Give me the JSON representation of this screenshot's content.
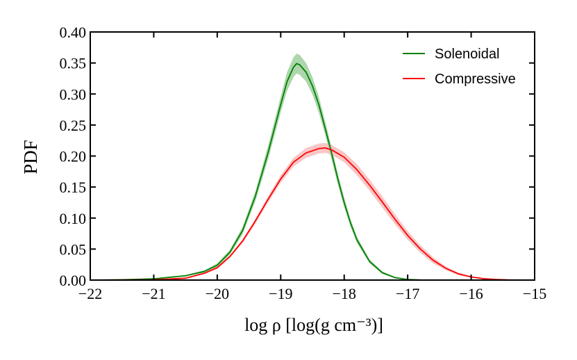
{
  "chart_data": {
    "type": "line",
    "xlabel": "log ρ   [log(g cm⁻³)]",
    "ylabel": "PDF",
    "xlim": [
      -22,
      -15
    ],
    "ylim": [
      0,
      0.4
    ],
    "x_ticks": [
      -22,
      -21,
      -20,
      -19,
      -18,
      -17,
      -16,
      -15
    ],
    "x_tick_labels": [
      "−22",
      "−21",
      "−20",
      "−19",
      "−18",
      "−17",
      "−16",
      "−15"
    ],
    "y_ticks": [
      0,
      0.05,
      0.1,
      0.15,
      0.2,
      0.25,
      0.3,
      0.35,
      0.4
    ],
    "y_tick_labels": [
      "0.00",
      "0.05",
      "0.10",
      "0.15",
      "0.20",
      "0.25",
      "0.30",
      "0.35",
      "0.40"
    ],
    "grid": false,
    "legend_position": "top-right",
    "series": [
      {
        "name": "Solenoidal",
        "color": "#008000",
        "band_color": "#90c890",
        "x": [
          -22.0,
          -21.5,
          -21.0,
          -20.5,
          -20.2,
          -20.0,
          -19.8,
          -19.6,
          -19.4,
          -19.2,
          -19.0,
          -18.9,
          -18.8,
          -18.75,
          -18.7,
          -18.6,
          -18.5,
          -18.4,
          -18.3,
          -18.2,
          -18.1,
          -18.0,
          -17.9,
          -17.8,
          -17.6,
          -17.4,
          -17.2,
          -17.0,
          -16.8,
          -16.6,
          -16.5
        ],
        "values": [
          0.0,
          0.0005,
          0.002,
          0.007,
          0.014,
          0.024,
          0.045,
          0.08,
          0.135,
          0.205,
          0.283,
          0.32,
          0.343,
          0.349,
          0.347,
          0.335,
          0.313,
          0.283,
          0.245,
          0.205,
          0.163,
          0.125,
          0.092,
          0.065,
          0.03,
          0.012,
          0.004,
          0.001,
          0.0003,
          0.0001,
          0.0
        ],
        "band": [
          0.0,
          0.0,
          0.0005,
          0.001,
          0.002,
          0.003,
          0.004,
          0.006,
          0.008,
          0.011,
          0.013,
          0.015,
          0.016,
          0.016,
          0.016,
          0.015,
          0.014,
          0.013,
          0.011,
          0.01,
          0.009,
          0.008,
          0.006,
          0.005,
          0.003,
          0.002,
          0.001,
          0.0,
          0.0,
          0.0,
          0.0
        ]
      },
      {
        "name": "Compressive",
        "color": "#ff0000",
        "band_color": "#f7b3b3",
        "x": [
          -22.0,
          -21.0,
          -20.5,
          -20.2,
          -20.0,
          -19.8,
          -19.6,
          -19.4,
          -19.2,
          -19.0,
          -18.8,
          -18.6,
          -18.4,
          -18.3,
          -18.2,
          -18.0,
          -17.8,
          -17.6,
          -17.4,
          -17.2,
          -17.0,
          -16.8,
          -16.6,
          -16.4,
          -16.2,
          -16.0,
          -15.8,
          -15.6,
          -15.4,
          -15.2,
          -15.0
        ],
        "values": [
          0.0,
          0.0005,
          0.003,
          0.011,
          0.02,
          0.038,
          0.063,
          0.095,
          0.13,
          0.163,
          0.19,
          0.205,
          0.212,
          0.213,
          0.21,
          0.198,
          0.178,
          0.153,
          0.126,
          0.098,
          0.072,
          0.05,
          0.032,
          0.019,
          0.01,
          0.005,
          0.0022,
          0.0009,
          0.0003,
          0.0001,
          0.0
        ],
        "band": [
          0.0,
          0.0,
          0.0005,
          0.001,
          0.002,
          0.002,
          0.003,
          0.004,
          0.005,
          0.006,
          0.007,
          0.008,
          0.008,
          0.008,
          0.008,
          0.008,
          0.009,
          0.009,
          0.009,
          0.008,
          0.007,
          0.006,
          0.005,
          0.003,
          0.002,
          0.001,
          0.001,
          0.0,
          0.0,
          0.0,
          0.0
        ]
      }
    ]
  }
}
